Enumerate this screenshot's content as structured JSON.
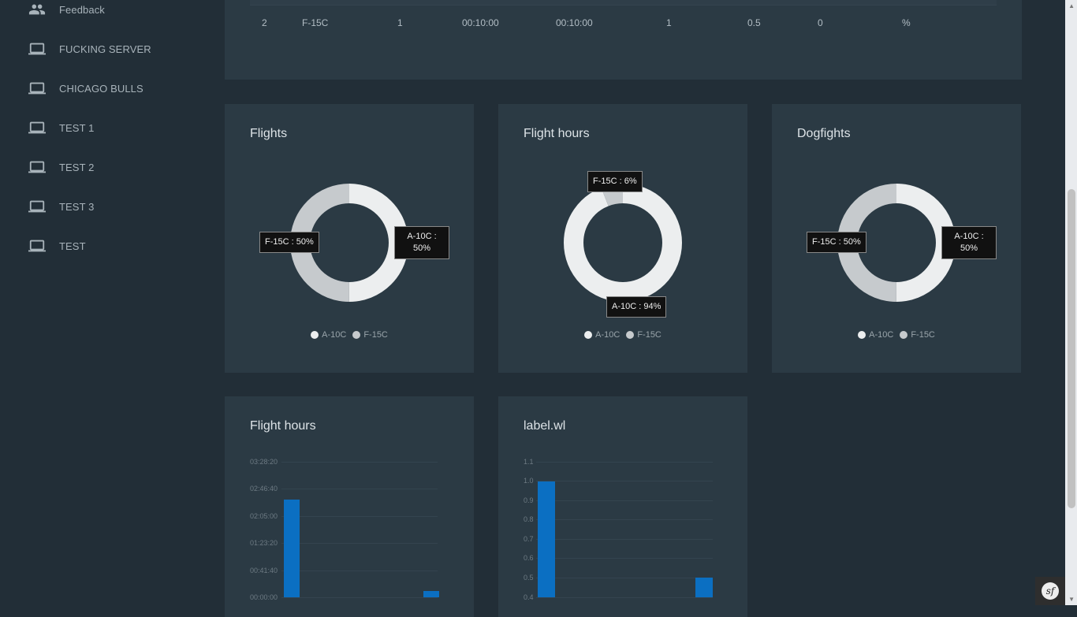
{
  "sidebar": {
    "items": [
      {
        "label": "Feedback",
        "icon": "people-icon"
      },
      {
        "label": "FUCKING SERVER",
        "icon": "laptop-icon"
      },
      {
        "label": "CHICAGO BULLS",
        "icon": "laptop-icon"
      },
      {
        "label": "TEST 1",
        "icon": "laptop-icon"
      },
      {
        "label": "TEST 2",
        "icon": "laptop-icon"
      },
      {
        "label": "TEST 3",
        "icon": "laptop-icon"
      },
      {
        "label": "TEST",
        "icon": "laptop-icon"
      }
    ]
  },
  "table": {
    "row": [
      "2",
      "F-15C",
      "1",
      "00:10:00",
      "00:10:00",
      "1",
      "0.5",
      "0",
      "%"
    ]
  },
  "colors": {
    "primary_slice": "#eceeef",
    "secondary_slice": "#c6cacd",
    "bar": "#0b6fc2"
  },
  "donuts": {
    "flights": {
      "title": "Flights",
      "tooltip_left": "F-15C : 50%",
      "tooltip_right_line1": "A-10C :",
      "tooltip_right_line2": "50%"
    },
    "hours": {
      "title": "Flight hours",
      "tooltip_top": "F-15C : 6%",
      "tooltip_bottom": "A-10C : 94%"
    },
    "dogfights": {
      "title": "Dogfights",
      "tooltip_left": "F-15C : 50%",
      "tooltip_right_line1": "A-10C :",
      "tooltip_right_line2": "50%"
    },
    "legend": [
      "A-10C",
      "F-15C"
    ]
  },
  "bar_charts": {
    "hours": {
      "title": "Flight hours",
      "yticks": [
        "03:28:20",
        "02:46:40",
        "02:05:00",
        "01:23:20",
        "00:41:40",
        "00:00:00"
      ]
    },
    "wl": {
      "title": "label.wl",
      "yticks": [
        "1.1",
        "1.0",
        "0.9",
        "0.8",
        "0.7",
        "0.6",
        "0.5",
        "0.4"
      ]
    }
  },
  "chart_data": [
    {
      "type": "pie",
      "title": "Flights",
      "categories": [
        "A-10C",
        "F-15C"
      ],
      "values": [
        50,
        50
      ]
    },
    {
      "type": "pie",
      "title": "Flight hours",
      "categories": [
        "A-10C",
        "F-15C"
      ],
      "values": [
        94,
        6
      ]
    },
    {
      "type": "pie",
      "title": "Dogfights",
      "categories": [
        "A-10C",
        "F-15C"
      ],
      "values": [
        50,
        50
      ]
    },
    {
      "type": "bar",
      "title": "Flight hours",
      "values_seconds": [
        9000,
        600
      ],
      "ylim_seconds": [
        0,
        12500
      ]
    },
    {
      "type": "bar",
      "title": "label.wl",
      "values": [
        1.0,
        0.5
      ],
      "ylim": [
        0.4,
        1.1
      ]
    }
  ],
  "symfony_badge": "sf"
}
